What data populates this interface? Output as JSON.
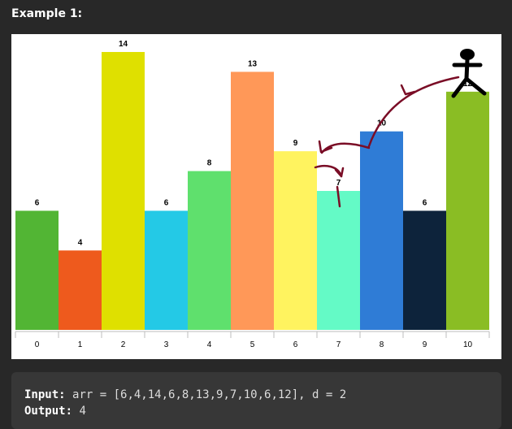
{
  "heading": "Example 1:",
  "chart_data": {
    "type": "bar",
    "categories": [
      "0",
      "1",
      "2",
      "3",
      "4",
      "5",
      "6",
      "7",
      "8",
      "9",
      "10"
    ],
    "values": [
      6,
      4,
      14,
      6,
      8,
      13,
      9,
      7,
      10,
      6,
      12
    ],
    "colors": [
      "#52b534",
      "#ee5a1d",
      "#dfe000",
      "#24c9e6",
      "#5fe06d",
      "#ff9858",
      "#fff35f",
      "#64fac6",
      "#2f7cd6",
      "#0d233b",
      "#8abd24"
    ],
    "arrow_color": "#7a0d26",
    "ylim": [
      0,
      14.9
    ]
  },
  "example": {
    "input_label": "Input:",
    "input_value": "arr = [6,4,14,6,8,13,9,7,10,6,12], d = 2",
    "output_label": "Output:",
    "output_value": "4"
  }
}
